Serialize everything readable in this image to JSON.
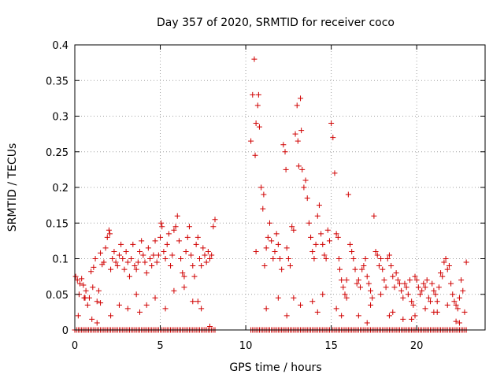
{
  "chart_data": {
    "type": "scatter",
    "title": "Day 357 of 2020, SRMTID for receiver coco",
    "xlabel": "GPS time / hours",
    "ylabel": "SRMTID / TECUs",
    "xlim": [
      0,
      24
    ],
    "ylim": [
      0,
      0.4
    ],
    "xticks": [
      0,
      5,
      10,
      15,
      20
    ],
    "yticks": [
      0,
      0.05,
      0.1,
      0.15,
      0.2,
      0.25,
      0.3,
      0.35,
      0.4
    ],
    "xtick_labels": [
      "0",
      "5",
      "10",
      "15",
      "20"
    ],
    "ytick_labels": [
      "0",
      "0.05",
      "0.1",
      "0.15",
      "0.2",
      "0.25",
      "0.3",
      "0.35",
      "0.4"
    ],
    "grid": true,
    "marker": "+",
    "color": "#d00000",
    "series": [
      {
        "name": "SRMTID",
        "x": [
          0.05,
          0.15,
          0.25,
          0.3,
          0.4,
          0.5,
          0.55,
          0.65,
          0.75,
          0.85,
          0.95,
          1.05,
          1.1,
          1.2,
          1.3,
          1.4,
          1.5,
          1.6,
          1.7,
          1.8,
          1.9,
          2.0,
          2.05,
          2.1,
          2.2,
          2.3,
          2.4,
          2.5,
          2.6,
          2.7,
          2.8,
          2.9,
          3.0,
          3.1,
          3.2,
          3.3,
          3.4,
          3.5,
          3.6,
          3.7,
          3.8,
          3.9,
          4.0,
          4.1,
          4.2,
          4.3,
          4.4,
          4.5,
          4.6,
          4.7,
          4.8,
          4.9,
          5.0,
          5.05,
          5.1,
          5.2,
          5.3,
          5.4,
          5.5,
          5.6,
          5.7,
          5.8,
          5.9,
          6.0,
          6.1,
          6.2,
          6.3,
          6.4,
          6.5,
          6.6,
          6.7,
          6.8,
          6.9,
          7.0,
          7.1,
          7.2,
          7.3,
          7.4,
          7.5,
          7.6,
          7.7,
          7.8,
          7.9,
          8.0,
          8.1,
          8.2,
          0.2,
          0.6,
          1.0,
          1.5,
          2.1,
          2.6,
          3.1,
          3.6,
          4.2,
          4.7,
          5.3,
          5.8,
          6.4,
          6.9,
          7.4,
          7.9,
          1.3,
          3.8,
          7.2,
          10.3,
          10.4,
          10.5,
          10.55,
          10.6,
          10.7,
          10.75,
          10.8,
          10.9,
          11.0,
          11.05,
          11.1,
          11.2,
          11.3,
          11.4,
          11.5,
          11.6,
          11.7,
          11.8,
          11.9,
          12.0,
          12.1,
          12.2,
          12.3,
          12.35,
          12.4,
          12.5,
          12.6,
          12.7,
          12.8,
          12.9,
          13.0,
          13.05,
          13.1,
          13.2,
          13.25,
          13.3,
          13.4,
          13.5,
          13.6,
          13.7,
          13.8,
          13.9,
          14.0,
          14.1,
          14.2,
          14.3,
          14.4,
          14.5,
          14.6,
          14.7,
          14.8,
          14.9,
          15.0,
          15.1,
          15.2,
          15.3,
          15.4,
          15.45,
          15.5,
          15.6,
          15.7,
          15.8,
          15.9,
          16.0,
          16.1,
          16.2,
          16.3,
          16.4,
          16.5,
          16.6,
          16.7,
          16.8,
          16.9,
          17.0,
          17.1,
          17.2,
          17.3,
          17.4,
          17.5,
          17.6,
          17.7,
          17.8,
          17.9,
          18.0,
          18.1,
          18.2,
          18.3,
          18.4,
          18.5,
          18.6,
          18.7,
          18.8,
          18.9,
          19.0,
          19.1,
          19.2,
          19.3,
          19.4,
          19.5,
          19.6,
          19.7,
          19.8,
          19.9,
          20.0,
          20.1,
          20.2,
          20.3,
          20.4,
          20.5,
          20.6,
          20.7,
          20.8,
          20.9,
          21.0,
          21.1,
          21.2,
          21.3,
          21.4,
          21.5,
          21.6,
          21.7,
          21.8,
          21.9,
          22.0,
          22.1,
          22.2,
          22.3,
          22.4,
          22.5,
          22.6,
          22.7,
          22.8,
          22.9,
          10.6,
          11.2,
          11.9,
          12.4,
          13.2,
          13.9,
          14.5,
          15.3,
          15.9,
          16.6,
          17.3,
          17.9,
          18.6,
          19.2,
          19.9,
          20.5,
          21.2,
          21.8,
          22.5,
          12.8,
          14.2,
          15.6,
          17.1,
          18.4,
          19.7,
          21.0,
          22.3
        ],
        "y": [
          0.075,
          0.07,
          0.05,
          0.065,
          0.072,
          0.063,
          0.045,
          0.055,
          0.035,
          0.045,
          0.082,
          0.06,
          0.088,
          0.1,
          0.04,
          0.055,
          0.108,
          0.092,
          0.095,
          0.115,
          0.13,
          0.14,
          0.135,
          0.085,
          0.1,
          0.11,
          0.095,
          0.09,
          0.105,
          0.12,
          0.1,
          0.085,
          0.11,
          0.095,
          0.075,
          0.1,
          0.12,
          0.09,
          0.085,
          0.095,
          0.11,
          0.125,
          0.105,
          0.095,
          0.08,
          0.115,
          0.1,
          0.09,
          0.105,
          0.125,
          0.095,
          0.105,
          0.13,
          0.15,
          0.145,
          0.11,
          0.1,
          0.12,
          0.135,
          0.09,
          0.105,
          0.14,
          0.145,
          0.16,
          0.125,
          0.1,
          0.08,
          0.075,
          0.11,
          0.13,
          0.145,
          0.105,
          0.09,
          0.075,
          0.12,
          0.13,
          0.1,
          0.09,
          0.115,
          0.105,
          0.095,
          0.11,
          0.1,
          0.105,
          0.145,
          0.155,
          0.02,
          0.045,
          0.015,
          0.038,
          0.02,
          0.035,
          0.03,
          0.05,
          0.035,
          0.045,
          0.03,
          0.055,
          0.06,
          0.04,
          0.03,
          0.005,
          0.01,
          0.025,
          0.04,
          0.265,
          0.33,
          0.38,
          0.245,
          0.29,
          0.315,
          0.33,
          0.285,
          0.2,
          0.17,
          0.19,
          0.09,
          0.115,
          0.13,
          0.15,
          0.125,
          0.1,
          0.11,
          0.135,
          0.12,
          0.1,
          0.085,
          0.26,
          0.25,
          0.225,
          0.115,
          0.1,
          0.09,
          0.145,
          0.14,
          0.275,
          0.315,
          0.265,
          0.23,
          0.325,
          0.28,
          0.225,
          0.2,
          0.21,
          0.185,
          0.15,
          0.13,
          0.11,
          0.1,
          0.12,
          0.16,
          0.175,
          0.135,
          0.12,
          0.105,
          0.1,
          0.14,
          0.125,
          0.29,
          0.27,
          0.22,
          0.135,
          0.13,
          0.1,
          0.085,
          0.07,
          0.06,
          0.05,
          0.07,
          0.19,
          0.12,
          0.11,
          0.1,
          0.085,
          0.065,
          0.07,
          0.06,
          0.085,
          0.09,
          0.1,
          0.075,
          0.065,
          0.055,
          0.045,
          0.16,
          0.11,
          0.105,
          0.09,
          0.1,
          0.085,
          0.07,
          0.06,
          0.1,
          0.105,
          0.09,
          0.075,
          0.06,
          0.08,
          0.07,
          0.065,
          0.055,
          0.045,
          0.065,
          0.06,
          0.05,
          0.07,
          0.04,
          0.035,
          0.075,
          0.07,
          0.06,
          0.05,
          0.055,
          0.065,
          0.06,
          0.07,
          0.045,
          0.04,
          0.065,
          0.055,
          0.05,
          0.04,
          0.06,
          0.08,
          0.075,
          0.095,
          0.1,
          0.085,
          0.09,
          0.065,
          0.05,
          0.04,
          0.035,
          0.03,
          0.045,
          0.07,
          0.055,
          0.025,
          0.095,
          0.11,
          0.03,
          0.045,
          0.02,
          0.035,
          0.04,
          0.05,
          0.03,
          0.045,
          0.02,
          0.035,
          0.05,
          0.025,
          0.015,
          0.02,
          0.03,
          0.025,
          0.035,
          0.01,
          0.045,
          0.025,
          0.02,
          0.01,
          0.02,
          0.015,
          0.025,
          0.012
        ],
        "zeros_x_range": [
          [
            0.0,
            8.2
          ],
          [
            10.3,
            22.9
          ]
        ],
        "zeros_step": 0.1
      }
    ]
  }
}
